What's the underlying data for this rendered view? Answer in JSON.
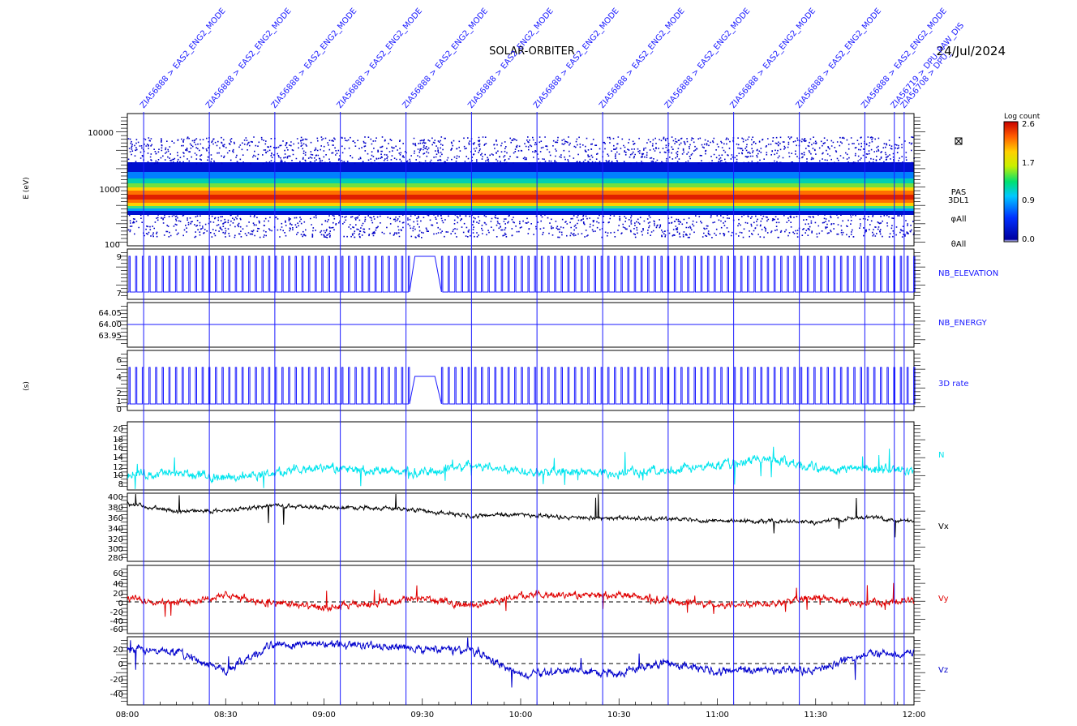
{
  "header": {
    "title": "SOLAR-ORBITER",
    "date": "24/Jul/2024"
  },
  "time_axis": {
    "start_hours": 8.0,
    "end_hours": 12.0,
    "ticks": [
      {
        "h": 8.0,
        "label": "08:00"
      },
      {
        "h": 8.5,
        "label": "08:30"
      },
      {
        "h": 9.0,
        "label": "09:00"
      },
      {
        "h": 9.5,
        "label": "09:30"
      },
      {
        "h": 10.0,
        "label": "10:00"
      },
      {
        "h": 10.5,
        "label": "10:30"
      },
      {
        "h": 11.0,
        "label": "11:00"
      },
      {
        "h": 11.5,
        "label": "11:30"
      },
      {
        "h": 12.0,
        "label": "12:00"
      }
    ]
  },
  "events": [
    {
      "h": 8.083,
      "label": "ZIA56888 > EAS2_ENG2_MODE"
    },
    {
      "h": 8.417,
      "label": "ZIA56888 > EAS2_ENG2_MODE"
    },
    {
      "h": 8.75,
      "label": "ZIA56888 > EAS2_ENG2_MODE"
    },
    {
      "h": 9.083,
      "label": "ZIA56888 > EAS2_ENG2_MODE"
    },
    {
      "h": 9.417,
      "label": "ZIA56888 > EAS2_ENG2_MODE"
    },
    {
      "h": 9.75,
      "label": "ZIA56888 > EAS2_ENG2_MODE"
    },
    {
      "h": 10.083,
      "label": "ZIA56888 > EAS2_ENG2_MODE"
    },
    {
      "h": 10.417,
      "label": "ZIA56888 > EAS2_ENG2_MODE"
    },
    {
      "h": 10.75,
      "label": "ZIA56888 > EAS2_ENG2_MODE"
    },
    {
      "h": 11.083,
      "label": "ZIA56888 > EAS2_ENG2_MODE"
    },
    {
      "h": 11.417,
      "label": "ZIA56888 > EAS2_ENG2_MODE"
    },
    {
      "h": 11.75,
      "label": "ZIA56888 > EAS2_ENG2_MODE"
    },
    {
      "h": 11.9,
      "label": "ZIA56719 > DPU_RAW_DIS"
    },
    {
      "h": 11.95,
      "label": "ZIA56708 > DPU_"
    }
  ],
  "spectrogram": {
    "ylabel": "E (eV)",
    "y_ticks": [
      "10000",
      "1000",
      "100"
    ],
    "right_labels": [
      "PAS",
      "3DL1",
      "φAll",
      "θAll"
    ],
    "colorbar": {
      "title": "Log count",
      "ticks": [
        "2.6",
        "1.7",
        "0.9",
        "0.0"
      ]
    },
    "gap_hours": [
      9.46,
      9.53
    ]
  },
  "panels": {
    "elevation": {
      "label": "NB_ELEVATION",
      "y_ticks": [
        "9",
        "7"
      ]
    },
    "energy": {
      "label": "NB_ENERGY",
      "y_ticks": [
        "64.05",
        "64.00",
        "63.95"
      ]
    },
    "rate": {
      "label": "3D rate",
      "ylabel": "(s)",
      "y_ticks": [
        "6",
        "4",
        "2",
        "1",
        "0"
      ]
    },
    "density": {
      "label": "N",
      "y_ticks": [
        "20",
        "18",
        "16",
        "14",
        "12",
        "10",
        "8"
      ],
      "color": "#00e5ee"
    },
    "vx": {
      "label": "Vx",
      "y_ticks": [
        "400",
        "380",
        "360",
        "340",
        "320",
        "300",
        "280"
      ],
      "color": "#000000"
    },
    "vy": {
      "label": "Vy",
      "y_ticks": [
        "60",
        "40",
        "20",
        "0",
        "-20",
        "-40",
        "-60"
      ],
      "color": "#e00000"
    },
    "vz": {
      "label": "Vz",
      "y_ticks": [
        "20",
        "0",
        "-20",
        "-40"
      ],
      "color": "#0000cc"
    }
  },
  "chart_data": [
    {
      "type": "heatmap",
      "title": "PAS 3DL1 energy spectrogram",
      "ylabel": "E (eV)",
      "ylim": [
        100,
        15000
      ],
      "yscale": "log",
      "color_scale": "Log count",
      "clim": [
        0.0,
        2.6
      ],
      "peak_energy_eV": 750
    },
    {
      "type": "line",
      "name": "NB_ELEVATION",
      "ylim": [
        7,
        9
      ],
      "levels": [
        7,
        9
      ],
      "note_values": "square wave between 7 and 9, constant 9 during 09:28-09:32 gap"
    },
    {
      "type": "line",
      "name": "NB_ENERGY",
      "ylim": [
        63.93,
        64.07
      ],
      "values": [
        64.0
      ]
    },
    {
      "type": "line",
      "name": "3D rate",
      "ylim": [
        0,
        7
      ],
      "levels": [
        0,
        4,
        5
      ]
    },
    {
      "type": "line",
      "name": "N",
      "x": [
        "08:00",
        "08:15",
        "08:30",
        "08:45",
        "09:00",
        "09:15",
        "09:30",
        "09:45",
        "10:00",
        "10:15",
        "10:30",
        "10:45",
        "11:00",
        "11:15",
        "11:30",
        "11:45",
        "12:00"
      ],
      "y": [
        10,
        10.5,
        9.5,
        10.5,
        11.5,
        11,
        10.5,
        12,
        11,
        10.5,
        10.5,
        11,
        12,
        13.5,
        11.5,
        11.5,
        11
      ],
      "ylim": [
        7,
        21
      ]
    },
    {
      "type": "line",
      "name": "Vx",
      "x": [
        "08:00",
        "08:15",
        "08:30",
        "08:45",
        "09:00",
        "09:15",
        "09:30",
        "09:45",
        "10:00",
        "10:15",
        "10:30",
        "10:45",
        "11:00",
        "11:15",
        "11:30",
        "11:45",
        "12:00"
      ],
      "y": [
        385,
        370,
        372,
        382,
        378,
        378,
        372,
        362,
        365,
        358,
        358,
        356,
        352,
        352,
        350,
        360,
        350
      ],
      "ylim": [
        275,
        405
      ]
    },
    {
      "type": "line",
      "name": "Vy",
      "x": [
        "08:00",
        "08:15",
        "08:30",
        "08:45",
        "09:00",
        "09:15",
        "09:30",
        "09:45",
        "10:00",
        "10:15",
        "10:30",
        "10:45",
        "11:00",
        "11:15",
        "11:30",
        "11:45",
        "12:00"
      ],
      "y": [
        5,
        -5,
        10,
        -5,
        -15,
        -5,
        5,
        -10,
        10,
        10,
        12,
        0,
        -10,
        -5,
        5,
        -5,
        0
      ],
      "ylim": [
        -65,
        70
      ]
    },
    {
      "type": "line",
      "name": "Vz",
      "x": [
        "08:00",
        "08:15",
        "08:30",
        "08:45",
        "09:00",
        "09:15",
        "09:30",
        "09:45",
        "10:00",
        "10:15",
        "10:30",
        "10:45",
        "11:00",
        "11:15",
        "11:30",
        "11:45",
        "12:00"
      ],
      "y": [
        15,
        12,
        -10,
        22,
        22,
        20,
        15,
        15,
        -15,
        -10,
        -12,
        0,
        -10,
        -8,
        -10,
        10,
        10
      ],
      "ylim": [
        -50,
        30
      ]
    }
  ]
}
